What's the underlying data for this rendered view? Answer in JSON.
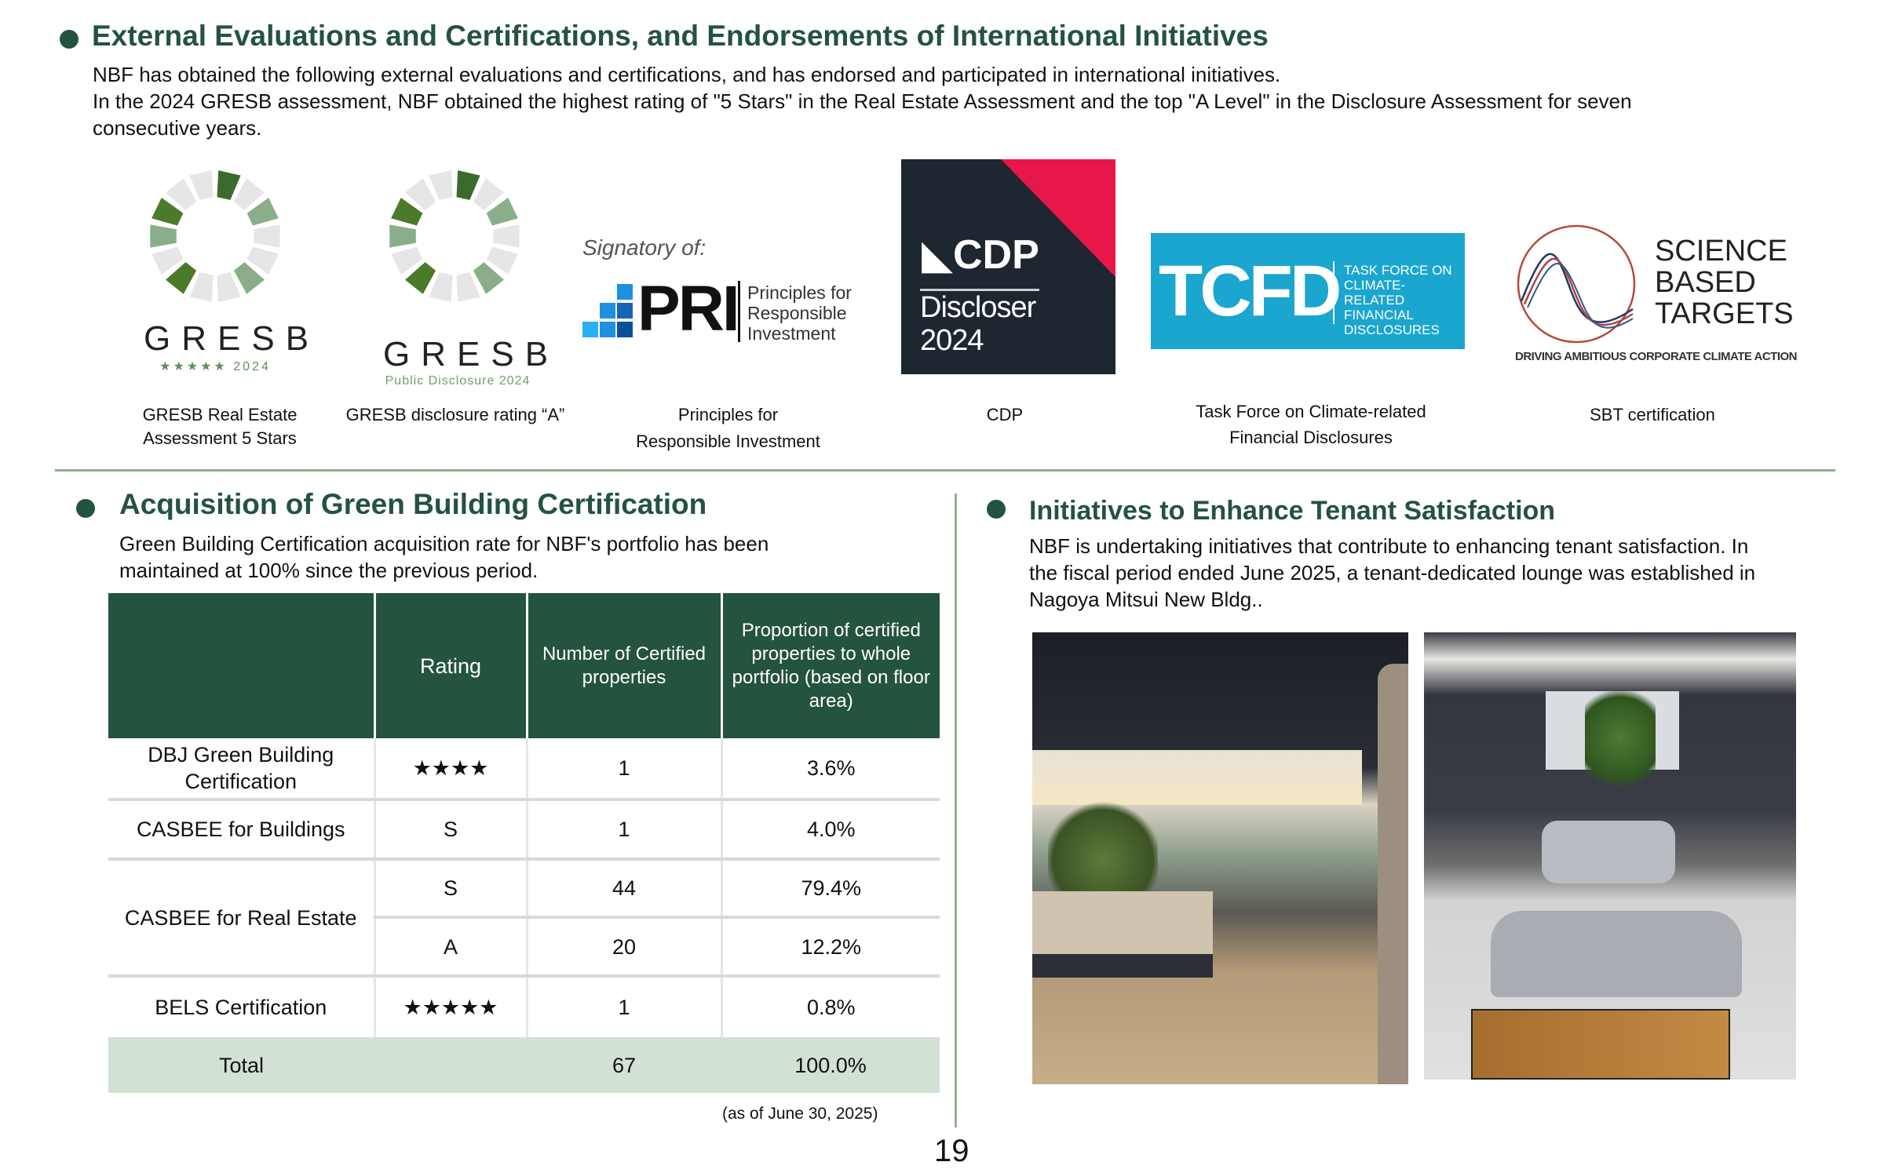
{
  "section1": {
    "title": "External Evaluations and Certifications, and Endorsements of International Initiatives",
    "lines": [
      "NBF has obtained the following external evaluations and certifications, and has endorsed and participated in international initiatives.",
      "In the 2024 GRESB assessment, NBF obtained the highest rating of \"5 Stars\" in the Real Estate Assessment and the top \"A Level\" in the Disclosure Assessment for seven",
      "consecutive years."
    ],
    "logos": [
      {
        "wordmark": "GRESB",
        "sub": "★★★★★ 2024",
        "caption1": "GRESB Real Estate",
        "caption2": "Assessment 5 Stars"
      },
      {
        "wordmark": "GRESB",
        "sub": "Public Disclosure 2024",
        "caption1": "GRESB disclosure rating “A”",
        "caption2": ""
      },
      {
        "signatory": "Signatory of:",
        "wordmark": "PRI",
        "tag": [
          "Principles for",
          "Responsible",
          "Investment"
        ],
        "caption1": "Principles for",
        "caption2": "Responsible Investment"
      },
      {
        "wordmark": "CDP",
        "line1": "Discloser",
        "line2": "2024",
        "caption1": "CDP"
      },
      {
        "wordmark": "TCFD",
        "tag": [
          "TASK FORCE ON",
          "CLIMATE-RELATED",
          "FINANCIAL",
          "DISCLOSURES"
        ],
        "caption1": "Task Force on Climate-related",
        "caption2": "Financial Disclosures"
      },
      {
        "wordmark": [
          "SCIENCE",
          "BASED",
          "TARGETS"
        ],
        "tagline": "DRIVING AMBITIOUS CORPORATE CLIMATE ACTION",
        "caption1": "SBT certification"
      }
    ]
  },
  "section2": {
    "title": "Acquisition of Green Building Certification",
    "lines": [
      "Green Building Certification acquisition rate for NBF's portfolio has been",
      "maintained at 100% since the previous period."
    ],
    "table": {
      "headers": [
        "",
        "Rating",
        "Number of Certified properties",
        "Proportion of certified properties to whole portfolio (based on floor area)"
      ],
      "rows": [
        [
          "DBJ Green Building Certification",
          "★★★★",
          "1",
          "3.6%"
        ],
        [
          "CASBEE for Buildings",
          "S",
          "1",
          "4.0%"
        ],
        [
          "CASBEE for Real Estate",
          "S",
          "44",
          "79.4%"
        ],
        [
          "",
          "A",
          "20",
          "12.2%"
        ],
        [
          "BELS Certification",
          "★★★★★",
          "1",
          "0.8%"
        ]
      ],
      "total": [
        "Total",
        "",
        "67",
        "100.0%"
      ]
    },
    "note": "(as of June 30, 2025)"
  },
  "section3": {
    "title": "Initiatives to Enhance Tenant Satisfaction",
    "lines": [
      "NBF is undertaking initiatives that contribute to enhancing tenant satisfaction. In",
      "the fiscal period ended June 2025, a tenant-dedicated lounge was established in",
      "Nagoya Mitsui New Bldg.."
    ]
  },
  "page_number": "19",
  "colors": {
    "accent": "#245340",
    "total_row": "#d3e0d4",
    "divider": "#8fb08f",
    "cdp_red": "#e8174a",
    "cdp_dark": "#1e2630",
    "tcfd_blue": "#1aa6cf"
  }
}
